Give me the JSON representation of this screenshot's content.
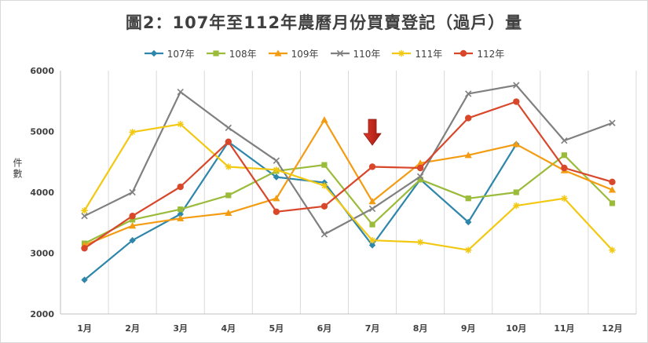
{
  "chart_data": {
    "type": "line",
    "title": "圖2：107年至112年農曆月份買賣登記（過戶）量",
    "ylabel": "件數",
    "categories": [
      "1月",
      "2月",
      "3月",
      "4月",
      "5月",
      "6月",
      "7月",
      "8月",
      "9月",
      "10月",
      "11月",
      "12月"
    ],
    "ylim": [
      2000,
      6000
    ],
    "yticks": [
      2000,
      3000,
      4000,
      5000,
      6000
    ],
    "grid": "vertical",
    "legend": "top-center",
    "annotation": "red-down-arrow-at-7月",
    "series": [
      {
        "name": "107年",
        "color": "#2e86ab",
        "marker": "diamond",
        "values": [
          2560,
          3210,
          3640,
          4830,
          4250,
          4160,
          3130,
          4210,
          3510,
          4790,
          null,
          null
        ]
      },
      {
        "name": "108年",
        "color": "#9bbb3b",
        "marker": "square",
        "values": [
          3160,
          3550,
          3720,
          3950,
          4350,
          4450,
          3470,
          4210,
          3900,
          4000,
          4610,
          3820
        ]
      },
      {
        "name": "109年",
        "color": "#f39c12",
        "marker": "triangle",
        "values": [
          3130,
          3450,
          3570,
          3660,
          3900,
          5190,
          3850,
          4480,
          4610,
          4790,
          4360,
          4040
        ]
      },
      {
        "name": "110年",
        "color": "#808080",
        "marker": "x",
        "values": [
          3610,
          4000,
          5650,
          5060,
          4520,
          3310,
          3730,
          4260,
          5620,
          5760,
          4850,
          5140
        ]
      },
      {
        "name": "111年",
        "color": "#f2c811",
        "marker": "star",
        "values": [
          3700,
          4990,
          5120,
          4420,
          4370,
          4110,
          3210,
          3180,
          3050,
          3780,
          3900,
          3050
        ]
      },
      {
        "name": "112年",
        "color": "#d9472b",
        "marker": "circle",
        "values": [
          3080,
          3610,
          4090,
          4830,
          3680,
          3770,
          4420,
          4400,
          5220,
          5490,
          4400,
          4170
        ]
      }
    ]
  }
}
